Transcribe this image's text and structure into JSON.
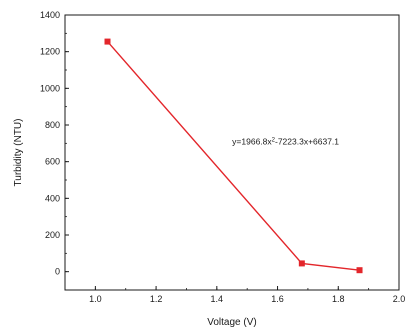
{
  "chart_data": {
    "type": "line",
    "title": "",
    "xlabel": "Voltage (V)",
    "ylabel": "Turbidity (NTU)",
    "xlim": [
      0.9,
      2.0
    ],
    "ylim": [
      -100,
      1400
    ],
    "x_ticks": [
      1.0,
      1.2,
      1.4,
      1.6,
      1.8,
      2.0
    ],
    "x_tick_labels": [
      "1.0",
      "1.2",
      "1.4",
      "1.6",
      "1.8",
      "2.0"
    ],
    "y_ticks": [
      0,
      200,
      400,
      600,
      800,
      1000,
      1200,
      1400
    ],
    "y_tick_labels": [
      "0",
      "200",
      "400",
      "600",
      "800",
      "1000",
      "1200",
      "1400"
    ],
    "grid": false,
    "series": [
      {
        "color": "#e3262b",
        "marker": "square",
        "points": [
          {
            "x": 1.04,
            "y": 1255
          },
          {
            "x": 1.68,
            "y": 45
          },
          {
            "x": 1.87,
            "y": 8
          }
        ]
      }
    ],
    "annotations": [
      {
        "text": "y=1966.8x²-7223.3x+6637.1",
        "x": 1.5,
        "y": 695
      }
    ]
  }
}
